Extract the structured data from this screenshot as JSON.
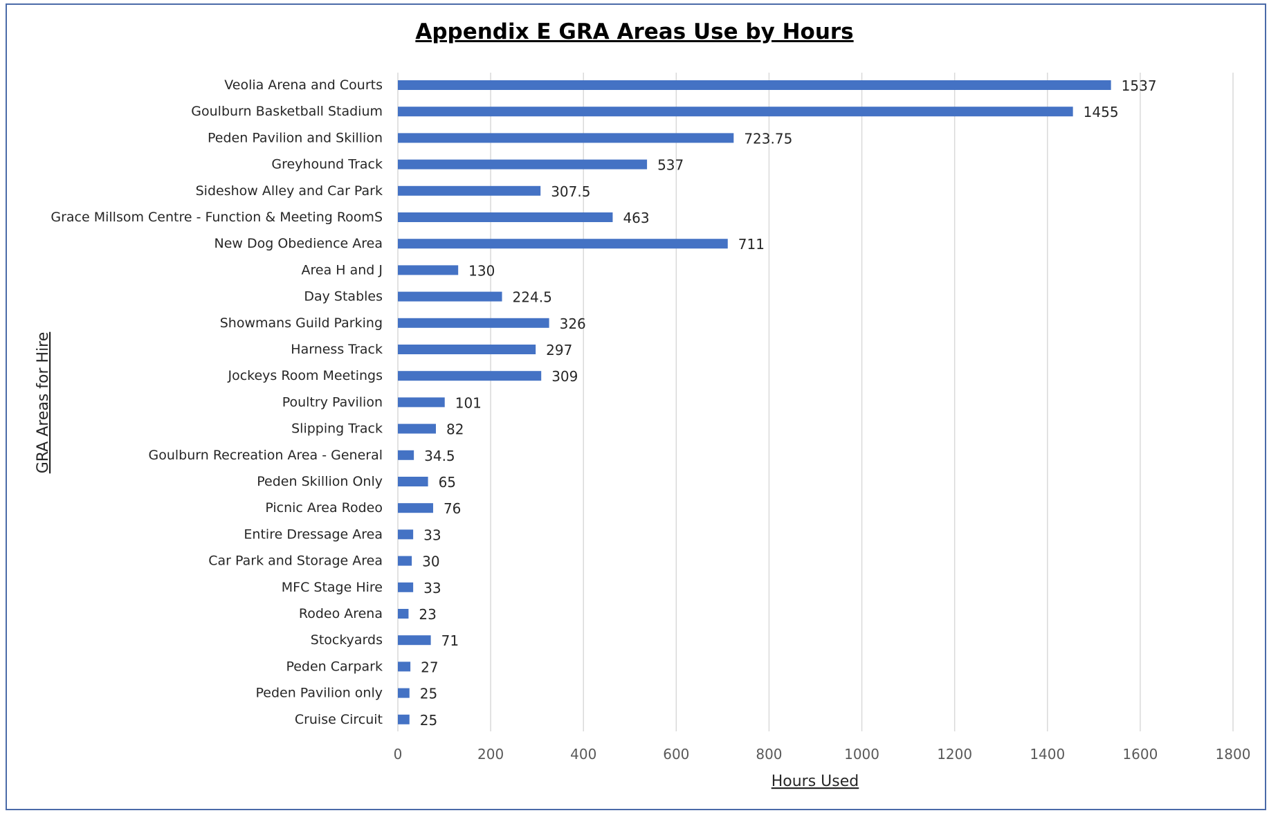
{
  "chart_data": {
    "type": "bar",
    "orientation": "horizontal",
    "title": "Appendix E GRA Areas Use by Hours",
    "xlabel": "Hours Used",
    "ylabel": "GRA Areas for Hire",
    "xlim": [
      0,
      1800
    ],
    "xticks": [
      0,
      200,
      400,
      600,
      800,
      1000,
      1200,
      1400,
      1600,
      1800
    ],
    "grid": true,
    "bar_color": "#4472c4",
    "categories": [
      "Veolia Arena and Courts",
      "Goulburn Basketball Stadium",
      "Peden Pavilion and Skillion",
      "Greyhound Track",
      "Sideshow Alley and Car Park",
      "Grace Millsom Centre - Function & Meeting RoomS",
      "New Dog Obedience Area",
      "Area H and J",
      "Day Stables",
      "Showmans Guild Parking",
      "Harness Track",
      "Jockeys Room Meetings",
      "Poultry Pavilion",
      "Slipping Track",
      "Goulburn Recreation Area - General",
      "Peden Skillion Only",
      "Picnic Area Rodeo",
      "Entire Dressage Area",
      "Car Park and Storage Area",
      "MFC Stage Hire",
      "Rodeo Arena",
      "Stockyards",
      "Peden Carpark",
      "Peden Pavilion only",
      "Cruise Circuit"
    ],
    "values": [
      1537,
      1455,
      723.75,
      537,
      307.5,
      463,
      711,
      130,
      224.5,
      326,
      297,
      309,
      101,
      82,
      34.5,
      65,
      76,
      33,
      30,
      33,
      23,
      71,
      27,
      25,
      25
    ],
    "value_labels": [
      "1537",
      "1455",
      "723.75",
      "537",
      "307.5",
      "463",
      "711",
      "130",
      "224.5",
      "326",
      "297",
      "309",
      "101",
      "82",
      "34.5",
      "65",
      "76",
      "33",
      "30",
      "33",
      "23",
      "71",
      "27",
      "25",
      "25"
    ]
  }
}
